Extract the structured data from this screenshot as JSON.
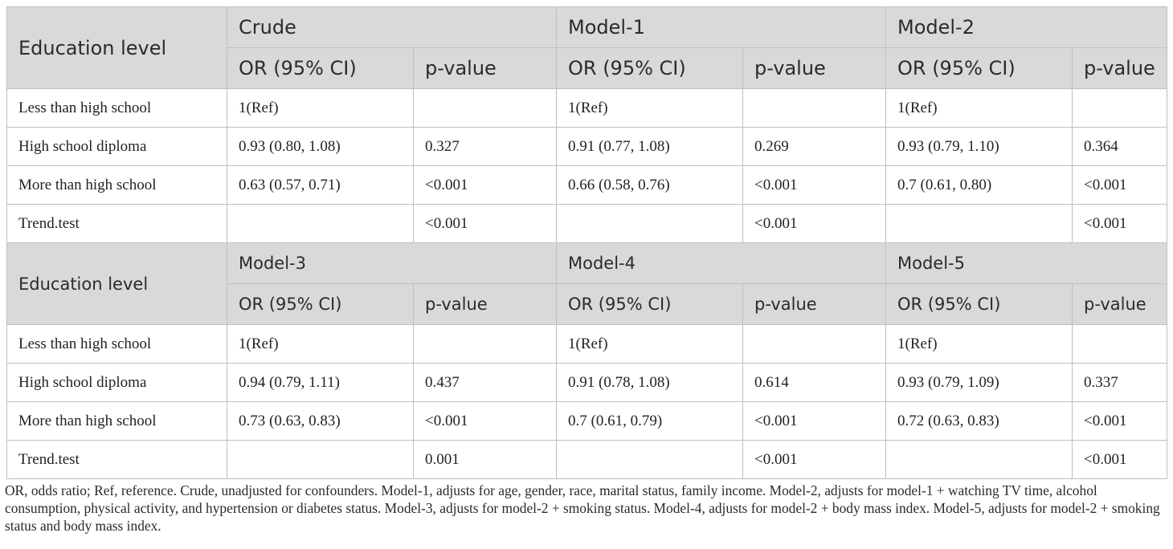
{
  "panels": [
    {
      "row_header": "Education level",
      "models": [
        "Crude",
        "Model-1",
        "Model-2"
      ],
      "subheaders": [
        "OR (95% CI)",
        "p-value",
        "OR (95% CI)",
        "p-value",
        "OR (95% CI)",
        "p-value"
      ],
      "rows": [
        {
          "label": "Less than high school",
          "cells": [
            "1(Ref)",
            "",
            "1(Ref)",
            "",
            "1(Ref)",
            ""
          ]
        },
        {
          "label": "High school diploma",
          "cells": [
            "0.93 (0.80, 1.08)",
            "0.327",
            "0.91 (0.77, 1.08)",
            "0.269",
            "0.93 (0.79, 1.10)",
            "0.364"
          ]
        },
        {
          "label": "More than high school",
          "cells": [
            "0.63 (0.57, 0.71)",
            "<0.001",
            "0.66 (0.58, 0.76)",
            "<0.001",
            "0.7 (0.61, 0.80)",
            "<0.001"
          ]
        },
        {
          "label": "Trend.test",
          "cells": [
            "",
            "<0.001",
            "",
            "<0.001",
            "",
            "<0.001"
          ]
        }
      ]
    },
    {
      "row_header": "Education level",
      "models": [
        "Model-3",
        "Model-4",
        "Model-5"
      ],
      "subheaders": [
        "OR (95% CI)",
        "p-value",
        "OR (95% CI)",
        "p-value",
        "OR (95% CI)",
        "p-value"
      ],
      "rows": [
        {
          "label": "Less than high school",
          "cells": [
            "1(Ref)",
            "",
            "1(Ref)",
            "",
            "1(Ref)",
            ""
          ]
        },
        {
          "label": "High school diploma",
          "cells": [
            "0.94 (0.79, 1.11)",
            "0.437",
            "0.91 (0.78, 1.08)",
            "0.614",
            "0.93 (0.79, 1.09)",
            "0.337"
          ]
        },
        {
          "label": "More than high school",
          "cells": [
            "0.73 (0.63, 0.83)",
            "<0.001",
            "0.7 (0.61, 0.79)",
            "<0.001",
            "0.72 (0.63, 0.83)",
            "<0.001"
          ]
        },
        {
          "label": "Trend.test",
          "cells": [
            "",
            "0.001",
            "",
            "<0.001",
            "",
            "<0.001"
          ]
        }
      ]
    }
  ],
  "footnote": "OR, odds ratio; Ref, reference. Crude, unadjusted for confounders. Model-1, adjusts for age, gender, race, marital status, family income. Model-2, adjusts for model-1 + watching TV time, alcohol consumption, physical activity, and hypertension or diabetes status. Model-3, adjusts for model-2 + smoking status. Model-4, adjusts for model-2 + body mass index. Model-5, adjusts for model-2 + smoking status and body mass index.",
  "colors": {
    "header_bg": "#d9d9d9",
    "border": "#bfbfbf"
  }
}
